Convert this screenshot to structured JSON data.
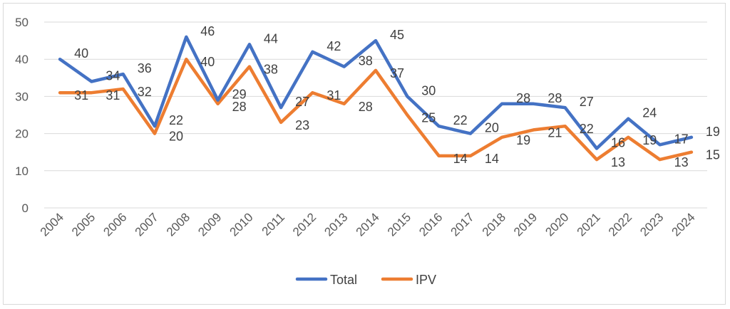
{
  "chart_data": {
    "type": "line",
    "categories": [
      "2004",
      "2005",
      "2006",
      "2007",
      "2008",
      "2009",
      "2010",
      "2011",
      "2012",
      "2013",
      "2014",
      "2015",
      "2016",
      "2017",
      "2018",
      "2019",
      "2020",
      "2021",
      "2022",
      "2023",
      "2024"
    ],
    "series": [
      {
        "name": "Total",
        "color": "#4472c4",
        "values": [
          40,
          34,
          36,
          22,
          46,
          29,
          44,
          27,
          42,
          38,
          45,
          30,
          22,
          20,
          28,
          28,
          27,
          16,
          24,
          17,
          19
        ],
        "labels": [
          "40",
          "34",
          "36",
          "22",
          "46",
          "29",
          "44",
          "27",
          "42",
          "38",
          "45",
          "30",
          "22",
          "20",
          "28",
          "28",
          "27",
          "16",
          "24",
          "17",
          "19"
        ]
      },
      {
        "name": "IPV",
        "color": "#ed7d31",
        "values": [
          31,
          31,
          32,
          20,
          40,
          28,
          38,
          23,
          31,
          28,
          37,
          25,
          14,
          14,
          19,
          21,
          22,
          13,
          19,
          13,
          15
        ],
        "labels": [
          "31",
          "31",
          "32",
          "20",
          "40",
          "28",
          "38",
          "23",
          "31",
          "28",
          "37",
          "25",
          "14",
          "14",
          "19",
          "21",
          "22",
          "13",
          "19",
          "13",
          "15"
        ]
      }
    ],
    "y_ticks": [
      "0",
      "10",
      "20",
      "30",
      "40",
      "50"
    ],
    "ylim": [
      0,
      50
    ],
    "grid": true,
    "legend": "bottom"
  }
}
